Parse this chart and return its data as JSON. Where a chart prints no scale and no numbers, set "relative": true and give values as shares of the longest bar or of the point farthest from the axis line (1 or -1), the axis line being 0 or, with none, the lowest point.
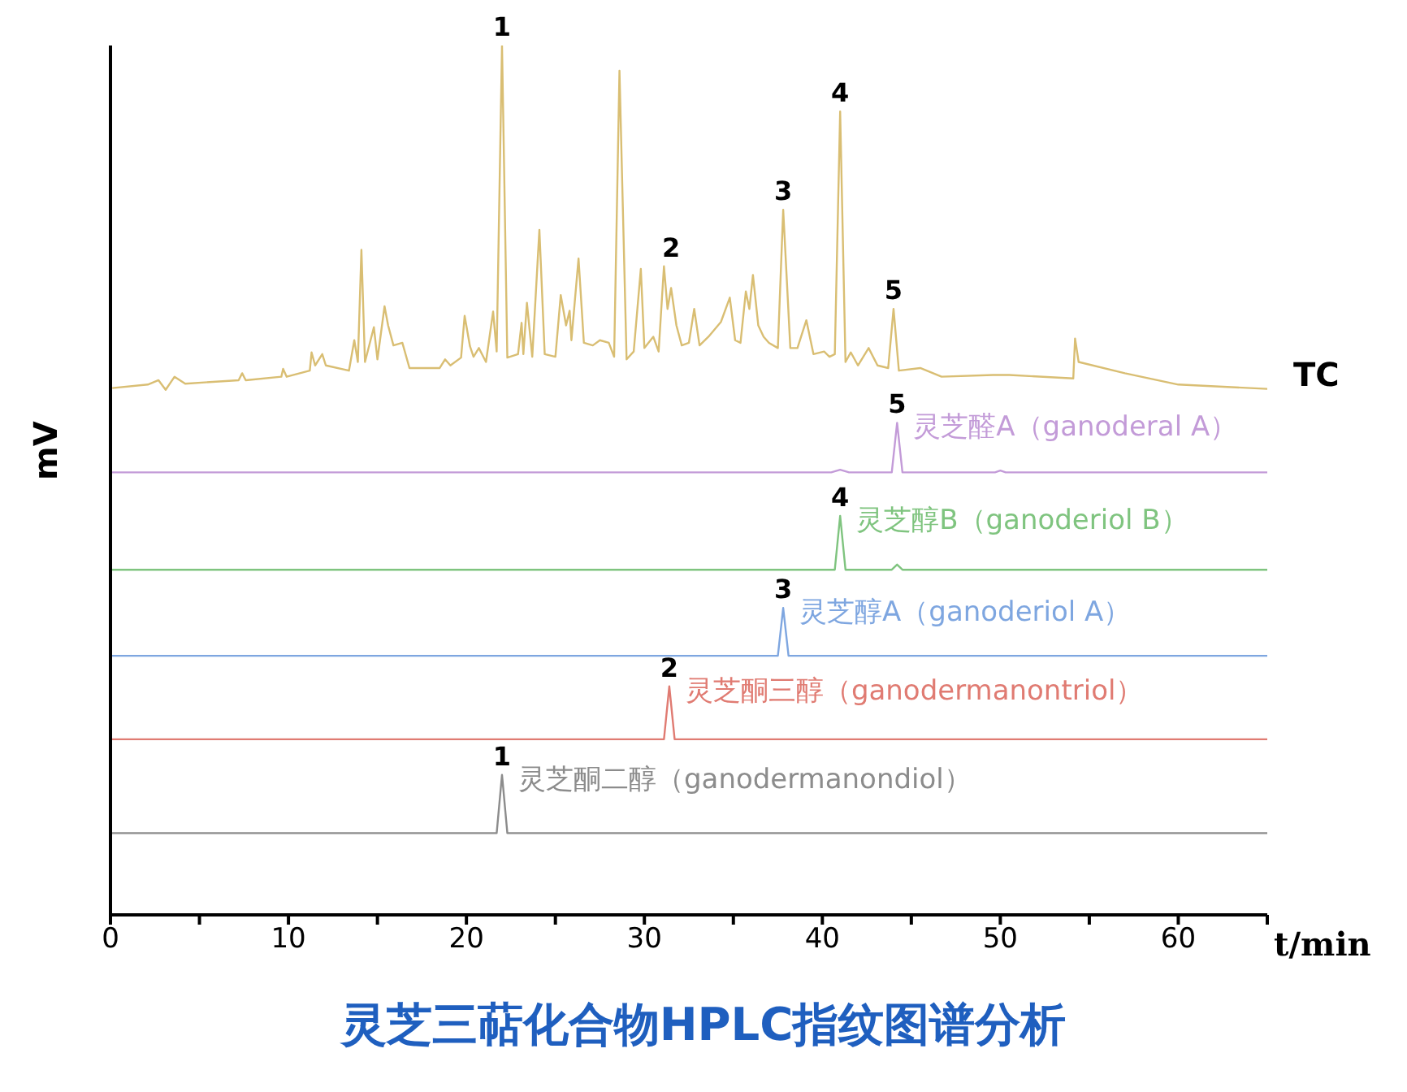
{
  "chart_data": {
    "type": "line",
    "relative": true,
    "title": "灵芝三萜化合物HPLC指纹图谱分析",
    "xlabel": "t/min",
    "ylabel": "mV",
    "xlim": [
      0,
      65
    ],
    "xticks": [
      0,
      {
        "value": 5,
        "label": null
      },
      10,
      {
        "value": 15,
        "label": null
      },
      20,
      {
        "value": 25,
        "label": null
      },
      30,
      {
        "value": 35,
        "label": null
      },
      40,
      {
        "value": 45,
        "label": null
      },
      50,
      {
        "value": 55,
        "label": null
      },
      60,
      {
        "value": 65,
        "label": null
      }
    ],
    "series": [
      {
        "name": "TC",
        "color": "#d9be73",
        "x": [
          0.1,
          2.1,
          2.7,
          3.1,
          3.6,
          4.2,
          7.2,
          7.4,
          7.6,
          9.6,
          9.7,
          9.9,
          11.2,
          11.3,
          11.5,
          11.9,
          12.1,
          13.4,
          13.7,
          13.9,
          14.1,
          14.3,
          14.8,
          15.0,
          15.4,
          15.6,
          15.9,
          16.4,
          16.8,
          18.5,
          18.8,
          19.1,
          19.7,
          19.9,
          20.2,
          20.4,
          20.7,
          21.1,
          21.5,
          21.7,
          22.0,
          22.3,
          22.9,
          23.1,
          23.2,
          23.4,
          23.7,
          24.1,
          24.4,
          25.0,
          25.3,
          25.6,
          25.8,
          25.9,
          26.3,
          26.6,
          27.1,
          27.5,
          28.0,
          28.3,
          28.6,
          29.0,
          29.4,
          29.8,
          30.0,
          30.5,
          30.8,
          31.1,
          31.3,
          31.5,
          31.8,
          32.1,
          32.5,
          32.8,
          33.1,
          33.6,
          34.3,
          34.8,
          35.1,
          35.4,
          35.7,
          35.9,
          36.1,
          36.4,
          36.7,
          37.0,
          37.5,
          37.8,
          38.2,
          38.6,
          39.1,
          39.5,
          40.1,
          40.4,
          40.7,
          41.0,
          41.3,
          41.6,
          42.0,
          42.6,
          43.1,
          43.7,
          44.0,
          44.3,
          45.5,
          46.7,
          49.6,
          50.5,
          54.1,
          54.2,
          54.4,
          57.0,
          60.0,
          65.0
        ],
        "values": [
          0.606,
          0.61,
          0.615,
          0.604,
          0.619,
          0.611,
          0.615,
          0.623,
          0.615,
          0.619,
          0.628,
          0.619,
          0.626,
          0.647,
          0.632,
          0.645,
          0.632,
          0.626,
          0.661,
          0.636,
          0.765,
          0.636,
          0.676,
          0.639,
          0.7,
          0.678,
          0.655,
          0.658,
          0.629,
          0.629,
          0.639,
          0.632,
          0.641,
          0.689,
          0.654,
          0.642,
          0.652,
          0.636,
          0.694,
          0.648,
          1.0,
          0.641,
          0.645,
          0.681,
          0.645,
          0.704,
          0.642,
          0.788,
          0.645,
          0.642,
          0.713,
          0.678,
          0.695,
          0.661,
          0.755,
          0.658,
          0.655,
          0.661,
          0.658,
          0.642,
          0.971,
          0.639,
          0.648,
          0.743,
          0.652,
          0.665,
          0.648,
          0.746,
          0.697,
          0.721,
          0.678,
          0.655,
          0.658,
          0.697,
          0.655,
          0.665,
          0.682,
          0.71,
          0.661,
          0.658,
          0.717,
          0.697,
          0.736,
          0.678,
          0.665,
          0.658,
          0.652,
          0.811,
          0.652,
          0.652,
          0.684,
          0.645,
          0.648,
          0.642,
          0.645,
          0.924,
          0.636,
          0.647,
          0.632,
          0.652,
          0.632,
          0.629,
          0.697,
          0.626,
          0.629,
          0.619,
          0.621,
          0.621,
          0.617,
          0.663,
          0.636,
          0.623,
          0.61,
          0.605
        ]
      },
      {
        "name": "灵芝醛A（ganoderal A）",
        "color": "#c39bd8",
        "x": [
          0,
          40.5,
          41,
          41.5,
          43.9,
          44.2,
          44.5,
          49.7,
          50,
          50.3,
          65
        ],
        "values": [
          0.509,
          0.509,
          0.512,
          0.509,
          0.509,
          0.566,
          0.509,
          0.509,
          0.511,
          0.509,
          0.509
        ]
      },
      {
        "name": "灵芝醇B（ganoderiol B）",
        "color": "#7fc47f",
        "x": [
          0,
          40.7,
          41,
          41.3,
          43.9,
          44.2,
          44.5,
          65
        ],
        "values": [
          0.397,
          0.397,
          0.459,
          0.397,
          0.397,
          0.403,
          0.397,
          0.397
        ]
      },
      {
        "name": "灵芝醇A（ganoderiol A）",
        "color": "#7ea6e0",
        "x": [
          0,
          37.5,
          37.8,
          38.1,
          65
        ],
        "values": [
          0.298,
          0.298,
          0.353,
          0.298,
          0.298
        ]
      },
      {
        "name": "灵芝酮三醇（ganodermanontriol）",
        "color": "#e07b72",
        "x": [
          0,
          31.1,
          31.4,
          31.7,
          65
        ],
        "values": [
          0.202,
          0.202,
          0.263,
          0.202,
          0.202
        ]
      },
      {
        "name": "灵芝酮二醇（ganodermanondiol）",
        "color": "#8c8c8c",
        "x": [
          0,
          21.7,
          22.0,
          22.3,
          65
        ],
        "values": [
          0.094,
          0.094,
          0.161,
          0.094,
          0.094
        ]
      }
    ],
    "annotations": [
      {
        "text": "1",
        "x": 22.0,
        "y": 1.0
      },
      {
        "text": "2",
        "x": 31.5,
        "y": 0.746
      },
      {
        "text": "3",
        "x": 37.8,
        "y": 0.811
      },
      {
        "text": "4",
        "x": 41.0,
        "y": 0.924
      },
      {
        "text": "5",
        "x": 44.0,
        "y": 0.697
      },
      {
        "text": "5",
        "x": 44.2,
        "y": 0.566
      },
      {
        "text": "4",
        "x": 41.0,
        "y": 0.459
      },
      {
        "text": "3",
        "x": 37.8,
        "y": 0.353
      },
      {
        "text": "2",
        "x": 31.4,
        "y": 0.263
      },
      {
        "text": "1",
        "x": 22.0,
        "y": 0.161
      }
    ]
  }
}
